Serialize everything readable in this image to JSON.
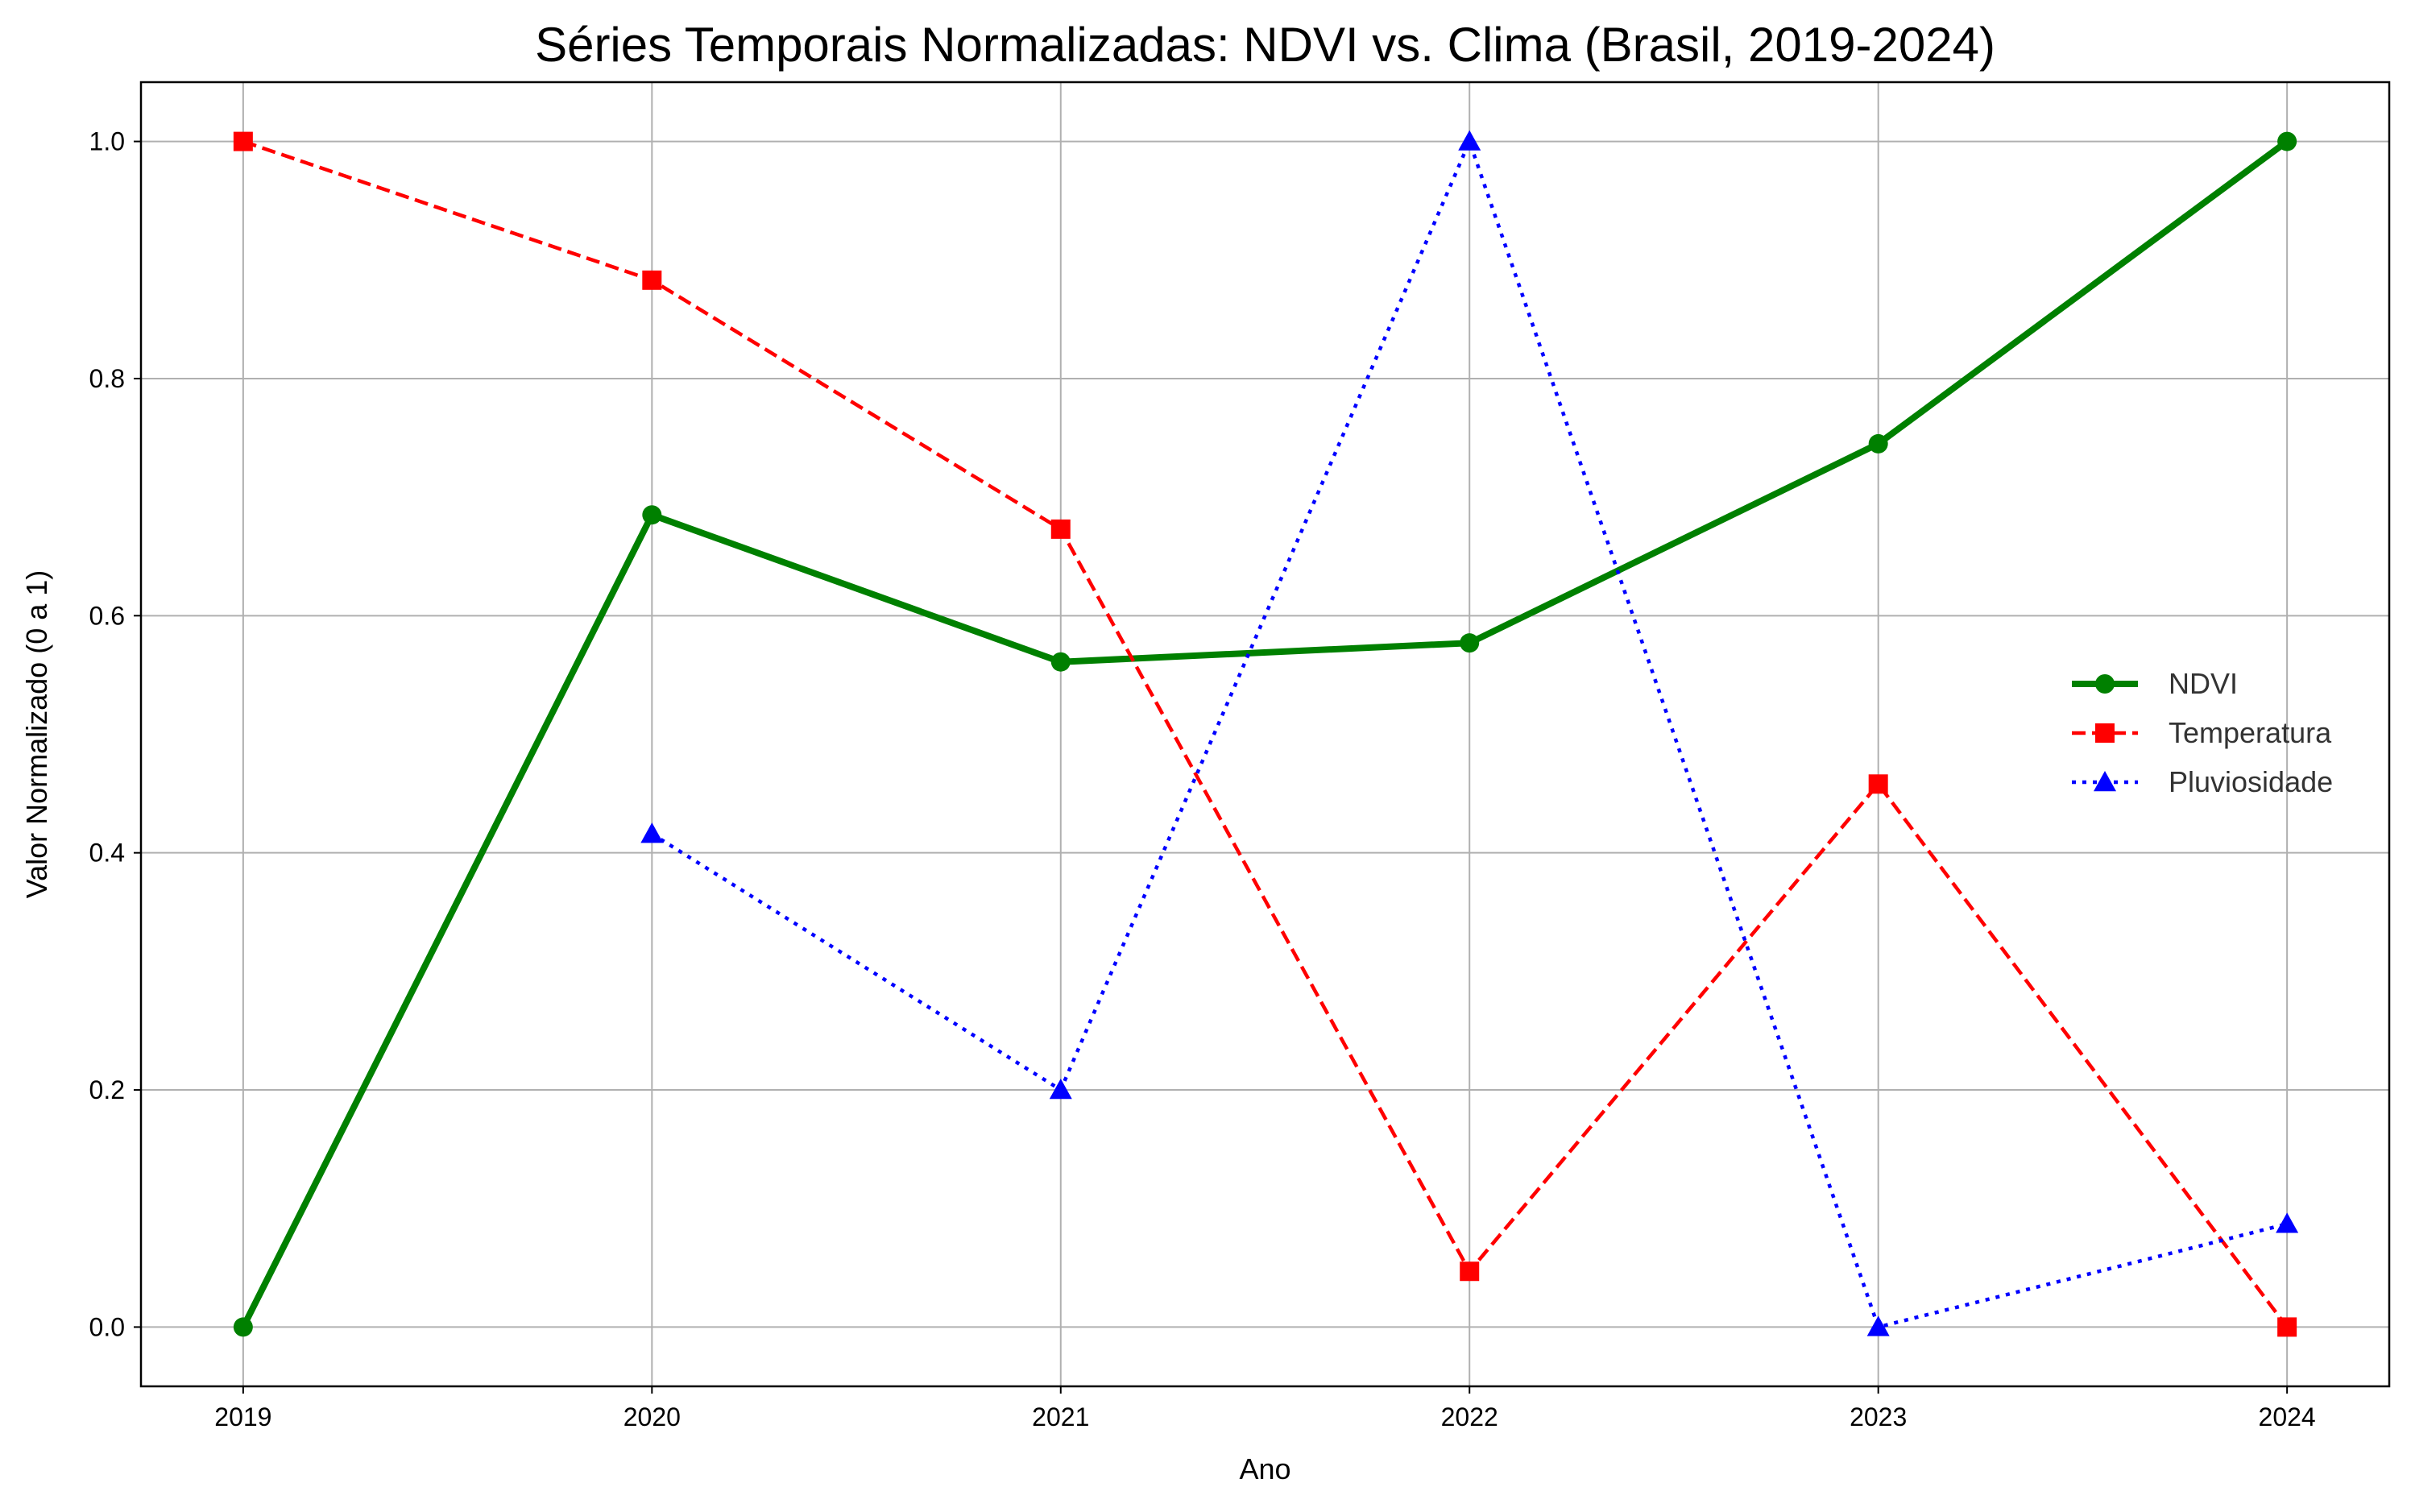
{
  "chart_data": {
    "type": "line",
    "title": "Séries Temporais Normalizadas: NDVI vs. Clima (Brasil, 2019-2024)",
    "xlabel": "Ano",
    "ylabel": "Valor Normalizado (0 a 1)",
    "x": [
      2019,
      2020,
      2021,
      2022,
      2023,
      2024
    ],
    "xticks": [
      "2019",
      "2020",
      "2021",
      "2022",
      "2023",
      "2024"
    ],
    "yticks": [
      "0.0",
      "0.2",
      "0.4",
      "0.6",
      "0.8",
      "1.0"
    ],
    "xlim": [
      2018.75,
      2024.25
    ],
    "ylim": [
      -0.05,
      1.05
    ],
    "grid": true,
    "legend_position": "center-right",
    "series": [
      {
        "name": "NDVI",
        "values": [
          0.0,
          0.685,
          0.561,
          0.577,
          0.745,
          1.0
        ],
        "color": "#008000",
        "line_style": "solid",
        "marker": "circle"
      },
      {
        "name": "Temperatura",
        "values": [
          1.0,
          0.883,
          0.673,
          0.047,
          0.458,
          0.0
        ],
        "color": "#ff0000",
        "line_style": "dashed",
        "marker": "square"
      },
      {
        "name": "Pluviosidade",
        "values": [
          null,
          0.416,
          0.2,
          1.0,
          0.0,
          0.087
        ],
        "color": "#0000ff",
        "line_style": "dotted",
        "marker": "triangle"
      }
    ]
  }
}
